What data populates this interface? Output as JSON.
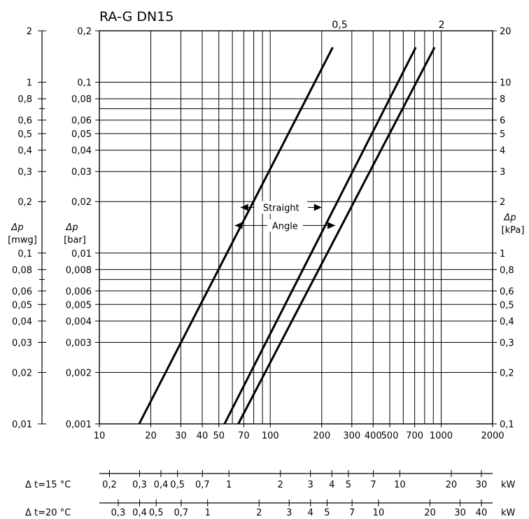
{
  "chart_data": {
    "type": "line",
    "title": "RA-G DN15",
    "x_scale": "log",
    "y_scale": "log",
    "xlim": [
      10,
      2000
    ],
    "ylim_bar": [
      0.001,
      0.2
    ],
    "grid": true,
    "x_ticks": [
      {
        "v": 10,
        "label": "10"
      },
      {
        "v": 20,
        "label": "20"
      },
      {
        "v": 30,
        "label": "30"
      },
      {
        "v": 40,
        "label": "40"
      },
      {
        "v": 50,
        "label": "50"
      },
      {
        "v": 70,
        "label": "70"
      },
      {
        "v": 100,
        "label": "100"
      },
      {
        "v": 200,
        "label": "200"
      },
      {
        "v": 300,
        "label": "300"
      },
      {
        "v": 400,
        "label": "400"
      },
      {
        "v": 500,
        "label": "500"
      },
      {
        "v": 700,
        "label": "700"
      },
      {
        "v": 1000,
        "label": "1000"
      },
      {
        "v": 2000,
        "label": "2000"
      }
    ],
    "y_ticks": [
      {
        "v": 0.001,
        "bar": "0,001",
        "mwg": "0,01",
        "kpa": "0,1"
      },
      {
        "v": 0.002,
        "bar": "0,002",
        "mwg": "0,02",
        "kpa": "0,2"
      },
      {
        "v": 0.003,
        "bar": "0,003",
        "mwg": "0,03",
        "kpa": "0,3"
      },
      {
        "v": 0.004,
        "bar": "0,004",
        "mwg": "0,04",
        "kpa": "0,4"
      },
      {
        "v": 0.005,
        "bar": "0,005",
        "mwg": "0,05",
        "kpa": "0,5"
      },
      {
        "v": 0.006,
        "bar": "0,006",
        "mwg": "0,06",
        "kpa": "0,6"
      },
      {
        "v": 0.008,
        "bar": "0,008",
        "mwg": "0,08",
        "kpa": "0,8"
      },
      {
        "v": 0.01,
        "bar": "0,01",
        "mwg": "0,1",
        "kpa": "1"
      },
      {
        "v": 0.02,
        "bar": "0,02",
        "mwg": "0,2",
        "kpa": "2"
      },
      {
        "v": 0.03,
        "bar": "0,03",
        "mwg": "0,3",
        "kpa": "3"
      },
      {
        "v": 0.04,
        "bar": "0,04",
        "mwg": "0,4",
        "kpa": "4"
      },
      {
        "v": 0.05,
        "bar": "0,05",
        "mwg": "0,5",
        "kpa": "5"
      },
      {
        "v": 0.06,
        "bar": "0,06",
        "mwg": "0,6",
        "kpa": "6"
      },
      {
        "v": 0.08,
        "bar": "0,08",
        "mwg": "0,8",
        "kpa": "8"
      },
      {
        "v": 0.1,
        "bar": "0,1",
        "mwg": "1",
        "kpa": "10"
      },
      {
        "v": 0.2,
        "bar": "0,2",
        "mwg": "2",
        "kpa": "20"
      }
    ],
    "y_minor_ticks": [
      0.007,
      0.07
    ],
    "axis_labels": {
      "mwg": [
        "Δp",
        "[mwg]"
      ],
      "bar": [
        "Δp",
        "[bar]"
      ],
      "kpa": [
        "Δp",
        "[kPa]"
      ]
    },
    "series": [
      {
        "label": "0,5",
        "x": [
          17.1,
          232
        ],
        "y": [
          0.001,
          0.16
        ]
      },
      {
        "label": "",
        "x": [
          54,
          710
        ],
        "y": [
          0.001,
          0.16
        ]
      },
      {
        "label": "2",
        "x": [
          65,
          915
        ],
        "y": [
          0.001,
          0.16
        ]
      }
    ],
    "annotations": [
      {
        "text": "Straight",
        "x_from": 67,
        "x_to": 200,
        "y": 0.0185
      },
      {
        "text": "Angle",
        "x_from": 62,
        "x_to": 240,
        "y": 0.0145
      }
    ],
    "kw_scales": [
      {
        "label": "Δ t=15 °C",
        "unit": "kW",
        "ticks": [
          {
            "v": 0.2,
            "label": "0,2"
          },
          {
            "v": 0.3,
            "label": "0,3"
          },
          {
            "v": 0.4,
            "label": "0,4"
          },
          {
            "v": 0.5,
            "label": "0,5"
          },
          {
            "v": 0.7,
            "label": "0,7"
          },
          {
            "v": 1,
            "label": "1"
          },
          {
            "v": 2,
            "label": "2"
          },
          {
            "v": 3,
            "label": "3"
          },
          {
            "v": 4,
            "label": "4"
          },
          {
            "v": 5,
            "label": "5"
          },
          {
            "v": 7,
            "label": "7"
          },
          {
            "v": 10,
            "label": "10"
          },
          {
            "v": 20,
            "label": "20"
          },
          {
            "v": 30,
            "label": "30"
          }
        ]
      },
      {
        "label": "Δ t=20 °C",
        "unit": "kW",
        "ticks": [
          {
            "v": 0.3,
            "label": "0,3"
          },
          {
            "v": 0.4,
            "label": "0,4"
          },
          {
            "v": 0.5,
            "label": "0,5"
          },
          {
            "v": 0.7,
            "label": "0,7"
          },
          {
            "v": 1,
            "label": "1"
          },
          {
            "v": 2,
            "label": "2"
          },
          {
            "v": 3,
            "label": "3"
          },
          {
            "v": 4,
            "label": "4"
          },
          {
            "v": 5,
            "label": "5"
          },
          {
            "v": 7,
            "label": "7"
          },
          {
            "v": 10,
            "label": "10"
          },
          {
            "v": 20,
            "label": "20"
          },
          {
            "v": 30,
            "label": "30"
          },
          {
            "v": 40,
            "label": "40"
          }
        ]
      }
    ]
  }
}
